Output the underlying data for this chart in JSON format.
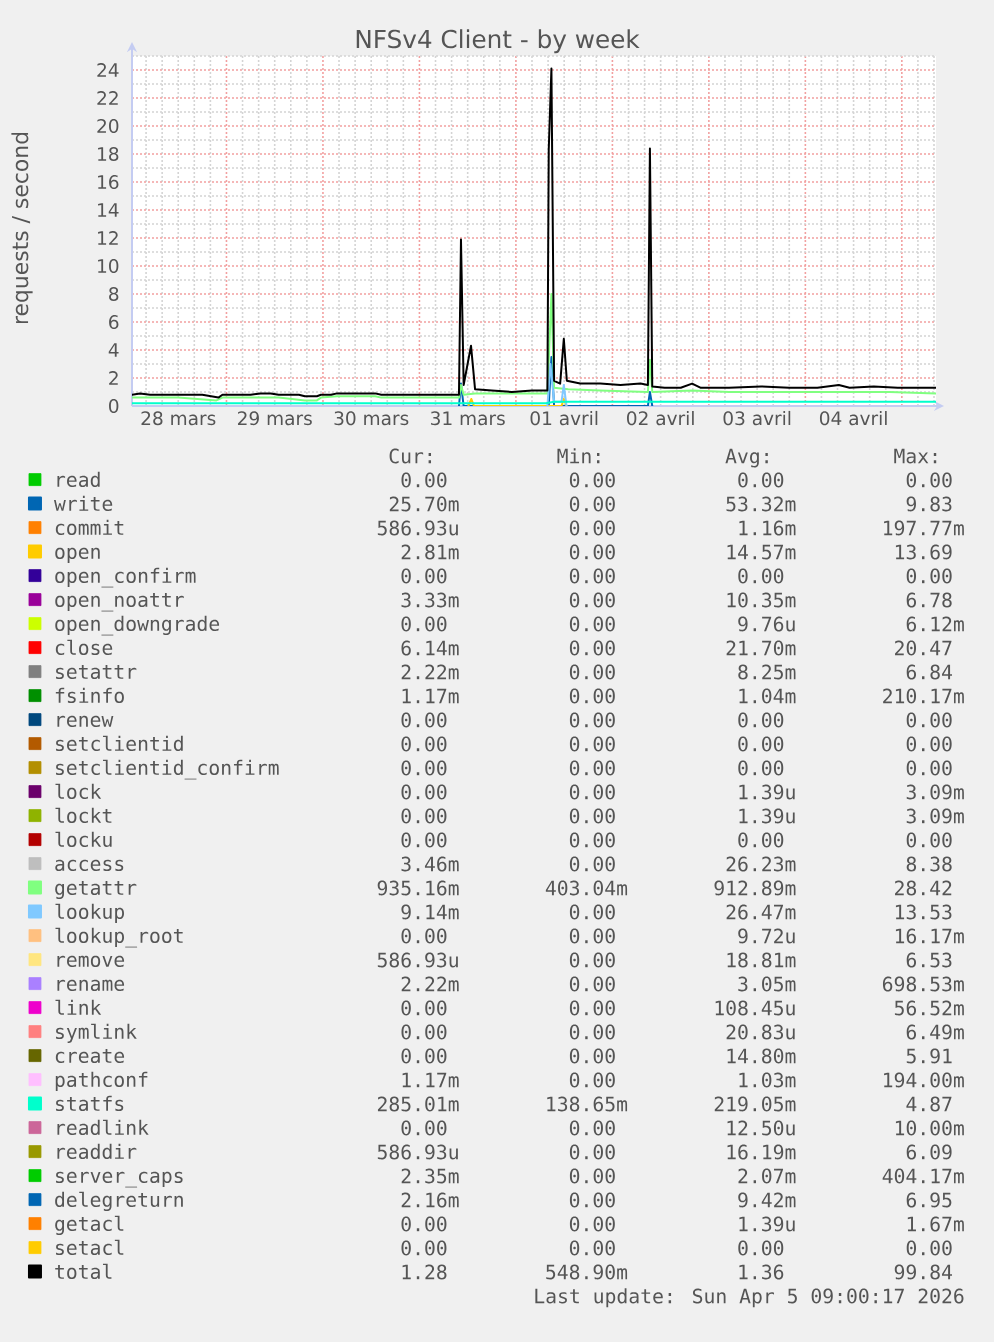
{
  "chart_data": [
    {
      "type": "line",
      "title": "NFSv4 Client - by week",
      "ylabel": "requests / second",
      "xlim": [
        "2026-03-28T00:30",
        "2026-04-05T08:30"
      ],
      "xticks": [
        {
          "value": "2026-03-28T12:00",
          "label": "28 mars"
        },
        {
          "value": "2026-03-29",
          "label": null
        },
        {
          "value": "2026-03-29T12:00",
          "label": "29 mars"
        },
        {
          "value": "2026-03-30",
          "label": null
        },
        {
          "value": "2026-03-30T12:00",
          "label": "30 mars"
        },
        {
          "value": "2026-03-31",
          "label": null
        },
        {
          "value": "2026-03-31T12:00",
          "label": "31 mars"
        },
        {
          "value": "2026-04-01",
          "label": null
        },
        {
          "value": "2026-04-01T12:00",
          "label": "01 avril"
        },
        {
          "value": "2026-04-02",
          "label": null
        },
        {
          "value": "2026-04-02T12:00",
          "label": "02 avril"
        },
        {
          "value": "2026-04-03",
          "label": null
        },
        {
          "value": "2026-04-03T12:00",
          "label": "03 avril"
        },
        {
          "value": "2026-04-04",
          "label": null
        },
        {
          "value": "2026-04-04T12:00",
          "label": "04 avril"
        },
        {
          "value": "2026-04-05",
          "label": null
        }
      ],
      "ylim": [
        0,
        25
      ],
      "yticks": [
        0,
        2,
        4,
        6,
        8,
        10,
        12,
        14,
        16,
        18,
        20,
        22,
        24
      ],
      "grid": true,
      "legend": "bottom",
      "series": [
        {
          "name": "read",
          "color": "#00cc00"
        },
        {
          "name": "write",
          "color": "#0066b3",
          "x": [
            "2026-03-31T09:50",
            "2026-03-31T10:20",
            "2026-03-31T11:00",
            "2026-04-01T08:10",
            "2026-04-01T08:50",
            "2026-04-01T09:30",
            "2026-04-02T08:50",
            "2026-04-02T09:20",
            "2026-04-02T09:55"
          ],
          "values": [
            0,
            1.6,
            0,
            0,
            3.5,
            0,
            0,
            1.0,
            0
          ]
        },
        {
          "name": "commit",
          "color": "#ff8000"
        },
        {
          "name": "open",
          "color": "#ffcc00",
          "x": [
            "2026-03-31T12:10",
            "2026-03-31T12:55",
            "2026-03-31T13:35",
            "2026-04-01T11:20",
            "2026-04-01T11:55",
            "2026-04-01T12:35"
          ],
          "values": [
            0,
            0.5,
            0,
            0,
            0.5,
            0
          ]
        },
        {
          "name": "open_confirm",
          "color": "#330099"
        },
        {
          "name": "open_noattr",
          "color": "#990099"
        },
        {
          "name": "open_downgrade",
          "color": "#ccff00"
        },
        {
          "name": "close",
          "color": "#ff0000"
        },
        {
          "name": "setattr",
          "color": "#808080"
        },
        {
          "name": "fsinfo",
          "color": "#008f00"
        },
        {
          "name": "renew",
          "color": "#00487d"
        },
        {
          "name": "setclientid",
          "color": "#b35a00"
        },
        {
          "name": "setclientid_confirm",
          "color": "#b38f00"
        },
        {
          "name": "lock",
          "color": "#6b006b"
        },
        {
          "name": "lockt",
          "color": "#8fb300"
        },
        {
          "name": "locku",
          "color": "#b30000"
        },
        {
          "name": "access",
          "color": "#bebebe"
        },
        {
          "name": "getattr",
          "color": "#80ff80",
          "x": [
            "2026-03-28T00:30",
            "2026-03-28T05:00",
            "2026-03-28T12:00",
            "2026-03-28T21:30",
            "2026-03-28T23:00",
            "2026-03-29T06:00",
            "2026-03-29T13:00",
            "2026-03-29T19:30",
            "2026-03-29T22:30",
            "2026-03-29T23:30",
            "2026-03-30T03:30",
            "2026-03-30T13:00",
            "2026-03-30T14:30",
            "2026-03-31T06:00",
            "2026-03-31T09:50",
            "2026-03-31T10:20",
            "2026-03-31T11:00",
            "2026-03-31T13:50",
            "2026-03-31T23:00",
            "2026-04-01T07:50",
            "2026-04-01T08:50",
            "2026-04-01T09:30",
            "2026-04-01T13:00",
            "2026-04-01T21:00",
            "2026-04-02T08:50",
            "2026-04-02T09:20",
            "2026-04-02T09:55",
            "2026-04-02T19:50",
            "2026-04-03T05:00",
            "2026-04-03T20:00",
            "2026-04-04T08:20",
            "2026-04-04T21:00",
            "2026-04-05T08:30"
          ],
          "values": [
            0.6,
            0.6,
            0.6,
            0.4,
            0.6,
            0.6,
            0.6,
            0.4,
            0.4,
            0.6,
            0.7,
            0.7,
            0.6,
            0.6,
            0.6,
            1.5,
            0.8,
            0.9,
            0.9,
            0.9,
            8.0,
            1.3,
            1.2,
            1.1,
            1.0,
            3.3,
            1.0,
            1.1,
            1.0,
            1.0,
            1.0,
            1.0,
            0.9
          ]
        },
        {
          "name": "lookup",
          "color": "#80c9ff",
          "x": [
            "2026-04-01T07:50",
            "2026-04-01T08:35",
            "2026-04-01T09:30",
            "2026-04-01T11:20",
            "2026-04-01T11:55",
            "2026-04-01T12:35"
          ],
          "values": [
            0,
            3.0,
            0.3,
            0.3,
            1.5,
            0
          ]
        },
        {
          "name": "lookup_root",
          "color": "#ffc080"
        },
        {
          "name": "remove",
          "color": "#ffe680"
        },
        {
          "name": "rename",
          "color": "#aa80ff"
        },
        {
          "name": "link",
          "color": "#ee00cc"
        },
        {
          "name": "symlink",
          "color": "#ff8080"
        },
        {
          "name": "create",
          "color": "#666600"
        },
        {
          "name": "pathconf",
          "color": "#ffbfff"
        },
        {
          "name": "statfs",
          "color": "#00ffcc",
          "x": [
            "2026-03-28T00:30",
            "2026-04-01T07:30",
            "2026-04-01T09:30",
            "2026-04-05T08:30"
          ],
          "values": [
            0.2,
            0.2,
            0.3,
            0.3
          ]
        },
        {
          "name": "readlink",
          "color": "#cc6699"
        },
        {
          "name": "readdir",
          "color": "#999900"
        },
        {
          "name": "server_caps",
          "color": "#00cc00"
        },
        {
          "name": "delegreturn",
          "color": "#0066b3"
        },
        {
          "name": "getacl",
          "color": "#ff8000"
        },
        {
          "name": "setacl",
          "color": "#ffcc00"
        },
        {
          "name": "total",
          "color": "#000000",
          "x": [
            "2026-03-28T00:30",
            "2026-03-28T02:30",
            "2026-03-28T05:00",
            "2026-03-28T12:00",
            "2026-03-28T18:00",
            "2026-03-28T22:00",
            "2026-03-28T23:00",
            "2026-03-29T01:00",
            "2026-03-29T06:00",
            "2026-03-29T08:30",
            "2026-03-29T11:00",
            "2026-03-29T13:00",
            "2026-03-29T18:00",
            "2026-03-29T19:30",
            "2026-03-29T22:30",
            "2026-03-29T23:30",
            "2026-03-30T02:00",
            "2026-03-30T03:30",
            "2026-03-30T08:00",
            "2026-03-30T13:00",
            "2026-03-30T14:30",
            "2026-03-30T22:00",
            "2026-03-31T06:00",
            "2026-03-31T09:50",
            "2026-03-31T10:20",
            "2026-03-31T11:00",
            "2026-03-31T12:50",
            "2026-03-31T13:50",
            "2026-03-31T18:00",
            "2026-03-31T23:00",
            "2026-04-01T04:00",
            "2026-04-01T07:50",
            "2026-04-01T08:10",
            "2026-04-01T08:50",
            "2026-04-01T09:30",
            "2026-04-01T11:00",
            "2026-04-01T11:55",
            "2026-04-01T12:40",
            "2026-04-01T16:00",
            "2026-04-01T21:00",
            "2026-04-02T02:00",
            "2026-04-02T07:00",
            "2026-04-02T08:50",
            "2026-04-02T09:20",
            "2026-04-02T09:55",
            "2026-04-02T13:00",
            "2026-04-02T17:00",
            "2026-04-02T19:50",
            "2026-04-02T22:00",
            "2026-04-03T05:00",
            "2026-04-03T13:00",
            "2026-04-03T20:00",
            "2026-04-04T03:00",
            "2026-04-04T08:20",
            "2026-04-04T11:00",
            "2026-04-04T17:00",
            "2026-04-04T23:00",
            "2026-04-05T04:00",
            "2026-04-05T08:30"
          ],
          "values": [
            0.8,
            0.9,
            0.8,
            0.8,
            0.8,
            0.6,
            0.8,
            0.8,
            0.8,
            0.9,
            0.9,
            0.8,
            0.8,
            0.7,
            0.7,
            0.8,
            0.8,
            0.9,
            0.9,
            0.9,
            0.8,
            0.8,
            0.8,
            0.8,
            11.9,
            1.5,
            4.3,
            1.2,
            1.1,
            1.0,
            1.1,
            1.1,
            18.3,
            24.1,
            1.8,
            1.6,
            4.8,
            1.8,
            1.6,
            1.6,
            1.5,
            1.6,
            1.5,
            18.4,
            1.4,
            1.3,
            1.3,
            1.6,
            1.3,
            1.3,
            1.4,
            1.3,
            1.3,
            1.5,
            1.3,
            1.4,
            1.3,
            1.3,
            1.3
          ]
        }
      ]
    },
    {
      "type": "other",
      "cell_labels": [
        [
          "0.00",
          "0.00",
          "0.00",
          "0.00"
        ],
        [
          "25.70m",
          "0.00",
          "53.32m",
          "9.83"
        ],
        [
          "586.93u",
          "0.00",
          "1.16m",
          "197.77m"
        ],
        [
          "2.81m",
          "0.00",
          "14.57m",
          "13.69"
        ],
        [
          "0.00",
          "0.00",
          "0.00",
          "0.00"
        ],
        [
          "3.33m",
          "0.00",
          "10.35m",
          "6.78"
        ],
        [
          "0.00",
          "0.00",
          "9.76u",
          "6.12m"
        ],
        [
          "6.14m",
          "0.00",
          "21.70m",
          "20.47"
        ],
        [
          "2.22m",
          "0.00",
          "8.25m",
          "6.84"
        ],
        [
          "1.17m",
          "0.00",
          "1.04m",
          "210.17m"
        ],
        [
          "0.00",
          "0.00",
          "0.00",
          "0.00"
        ],
        [
          "0.00",
          "0.00",
          "0.00",
          "0.00"
        ],
        [
          "0.00",
          "0.00",
          "0.00",
          "0.00"
        ],
        [
          "0.00",
          "0.00",
          "1.39u",
          "3.09m"
        ],
        [
          "0.00",
          "0.00",
          "1.39u",
          "3.09m"
        ],
        [
          "0.00",
          "0.00",
          "0.00",
          "0.00"
        ],
        [
          "3.46m",
          "0.00",
          "26.23m",
          "8.38"
        ],
        [
          "935.16m",
          "403.04m",
          "912.89m",
          "28.42"
        ],
        [
          "9.14m",
          "0.00",
          "26.47m",
          "13.53"
        ],
        [
          "0.00",
          "0.00",
          "9.72u",
          "16.17m"
        ],
        [
          "586.93u",
          "0.00",
          "18.81m",
          "6.53"
        ],
        [
          "2.22m",
          "0.00",
          "3.05m",
          "698.53m"
        ],
        [
          "0.00",
          "0.00",
          "108.45u",
          "56.52m"
        ],
        [
          "0.00",
          "0.00",
          "20.83u",
          "6.49m"
        ],
        [
          "0.00",
          "0.00",
          "14.80m",
          "5.91"
        ],
        [
          "1.17m",
          "0.00",
          "1.03m",
          "194.00m"
        ],
        [
          "285.01m",
          "138.65m",
          "219.05m",
          "4.87"
        ],
        [
          "0.00",
          "0.00",
          "12.50u",
          "10.00m"
        ],
        [
          "586.93u",
          "0.00",
          "16.19m",
          "6.09"
        ],
        [
          "2.35m",
          "0.00",
          "2.07m",
          "404.17m"
        ],
        [
          "2.16m",
          "0.00",
          "9.42m",
          "6.95"
        ],
        [
          "0.00",
          "0.00",
          "1.39u",
          "1.67m"
        ],
        [
          "0.00",
          "0.00",
          "0.00",
          "0.00"
        ],
        [
          "1.28",
          "548.90m",
          "1.36",
          "99.84"
        ]
      ],
      "annotations": [
        "Cur:",
        "Min:",
        "Avg:",
        "Max:",
        "Last update: Sun Apr 5 09:00:17 2026"
      ]
    }
  ]
}
